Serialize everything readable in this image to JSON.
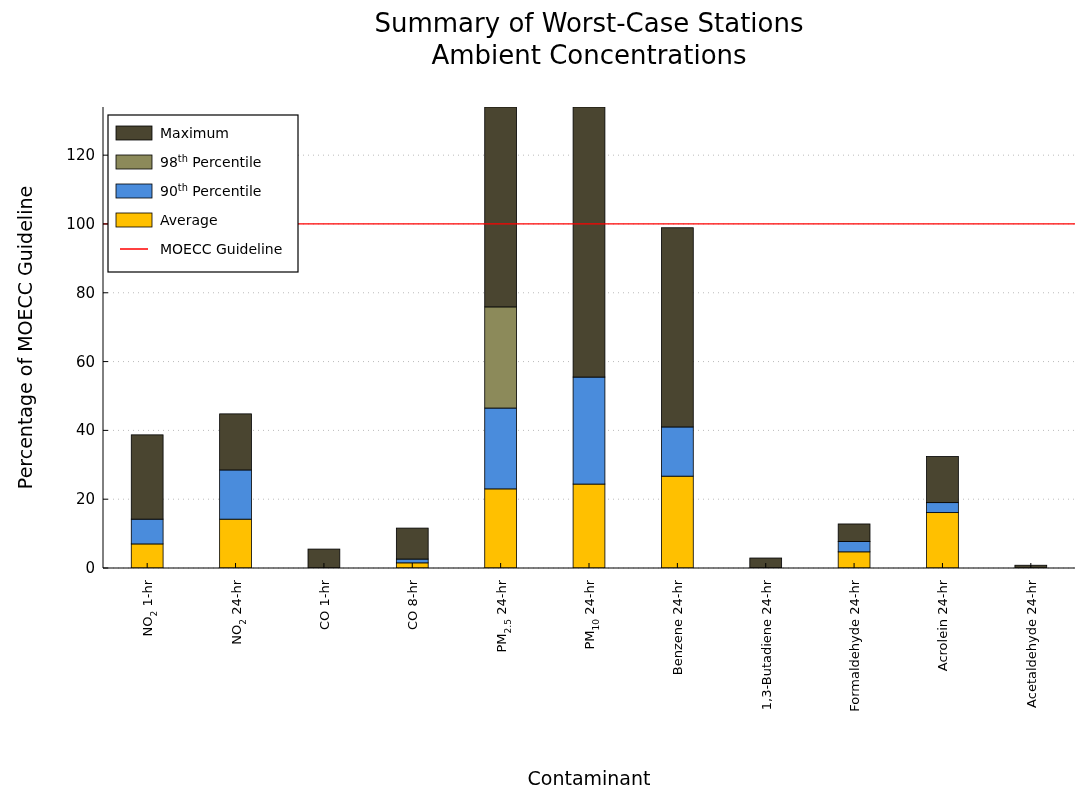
{
  "chart_data": {
    "type": "bar",
    "title": "Summary of Worst-Case Stations",
    "subtitle": "Ambient Concentrations",
    "xlabel": "Contaminant",
    "ylabel": "Percentage of MOECC Guideline",
    "categories": [
      "NO$_{2}$ 1-hr",
      "NO$_{2}$ 24-hr",
      "CO 1-hr",
      "CO 8-hr",
      "PM$_{2.5}$ 24-hr",
      "PM$_{10}$ 24-hr",
      "Benzene 24-hr",
      "1,3-Butadiene 24-hr",
      "Formaldehyde 24-hr",
      "Acrolein 24-hr",
      "Acetaldehyde 24-hr"
    ],
    "stacked": true,
    "series": [
      {
        "name": "Average",
        "color": "#ffc000",
        "values": [
          7,
          14.2,
          null,
          1.5,
          23,
          24.4,
          26.7,
          null,
          4.7,
          16.1,
          null
        ]
      },
      {
        "name": "90$^{th}$ Percentile",
        "color": "#4a8cdc",
        "values": [
          7.2,
          14.3,
          null,
          1.1,
          23.5,
          31.1,
          14.3,
          null,
          3,
          2.9,
          null
        ]
      },
      {
        "name": "98$^{th}$ Percentile",
        "color": "#8c8a5a",
        "values": [
          null,
          null,
          null,
          null,
          29.4,
          null,
          null,
          null,
          null,
          null,
          null
        ]
      },
      {
        "name": "Maximum",
        "color": "#4a4530",
        "values": [
          24.5,
          16.3,
          5.5,
          9,
          58.1,
          78.5,
          57.9,
          2.9,
          5.1,
          13.4,
          0.8
        ]
      }
    ],
    "ylim": [
      0,
      134
    ],
    "yticks": [
      0,
      20,
      40,
      60,
      80,
      100,
      120
    ],
    "grid": "y",
    "legend": "top left",
    "ref_lines": [
      {
        "axis": "y",
        "value": 100,
        "label": "MOECC Guideline",
        "color": "#ff0000"
      }
    ]
  }
}
